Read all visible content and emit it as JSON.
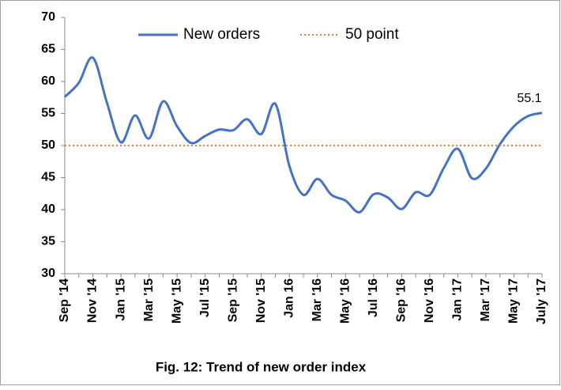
{
  "chart_data": {
    "type": "line",
    "title": "Fig. 12: Trend of  new order index",
    "categories": [
      "Sep '14",
      null,
      "Nov '14",
      null,
      "Jan '15",
      null,
      "Mar '15",
      null,
      "May '15",
      null,
      "Jul '15",
      null,
      "Sep '15",
      null,
      "Nov '15",
      null,
      "Jan 16",
      null,
      "Mar '16",
      null,
      "May '16",
      null,
      "Jul '16",
      null,
      "Sep '16",
      null,
      "Nov '16",
      null,
      "Jan '17",
      null,
      "Mar '17",
      null,
      "May '17",
      null,
      "July '17"
    ],
    "series": [
      {
        "name": "New orders",
        "color": "#4472c4",
        "dash": "solid",
        "values": [
          57.6,
          59.8,
          63.7,
          56.7,
          50.5,
          54.7,
          51.1,
          56.9,
          53,
          50.4,
          51.5,
          52.5,
          52.4,
          54.1,
          51.8,
          56.5,
          46.8,
          42.3,
          44.8,
          42.3,
          41.4,
          39.6,
          42.4,
          41.9,
          40.1,
          42.7,
          42.3,
          46.5,
          49.5,
          44.9,
          46.4,
          50.2,
          53,
          54.6,
          55.1
        ],
        "value_labels": [
          null,
          null,
          null,
          null,
          null,
          null,
          null,
          null,
          null,
          null,
          null,
          null,
          null,
          null,
          null,
          null,
          null,
          null,
          null,
          null,
          null,
          null,
          null,
          null,
          null,
          null,
          null,
          null,
          null,
          null,
          null,
          null,
          null,
          null,
          "55.1"
        ]
      },
      {
        "name": "50 point",
        "color": "#ed7d31",
        "dash": "dotted",
        "values": [
          50,
          50,
          50,
          50,
          50,
          50,
          50,
          50,
          50,
          50,
          50,
          50,
          50,
          50,
          50,
          50,
          50,
          50,
          50,
          50,
          50,
          50,
          50,
          50,
          50,
          50,
          50,
          50,
          50,
          50,
          50,
          50,
          50,
          50,
          50
        ]
      }
    ],
    "ylim": [
      30,
      70
    ],
    "yticks": [
      30,
      35,
      40,
      45,
      50,
      55,
      60,
      65,
      70
    ],
    "grid": false,
    "legend": "top"
  }
}
